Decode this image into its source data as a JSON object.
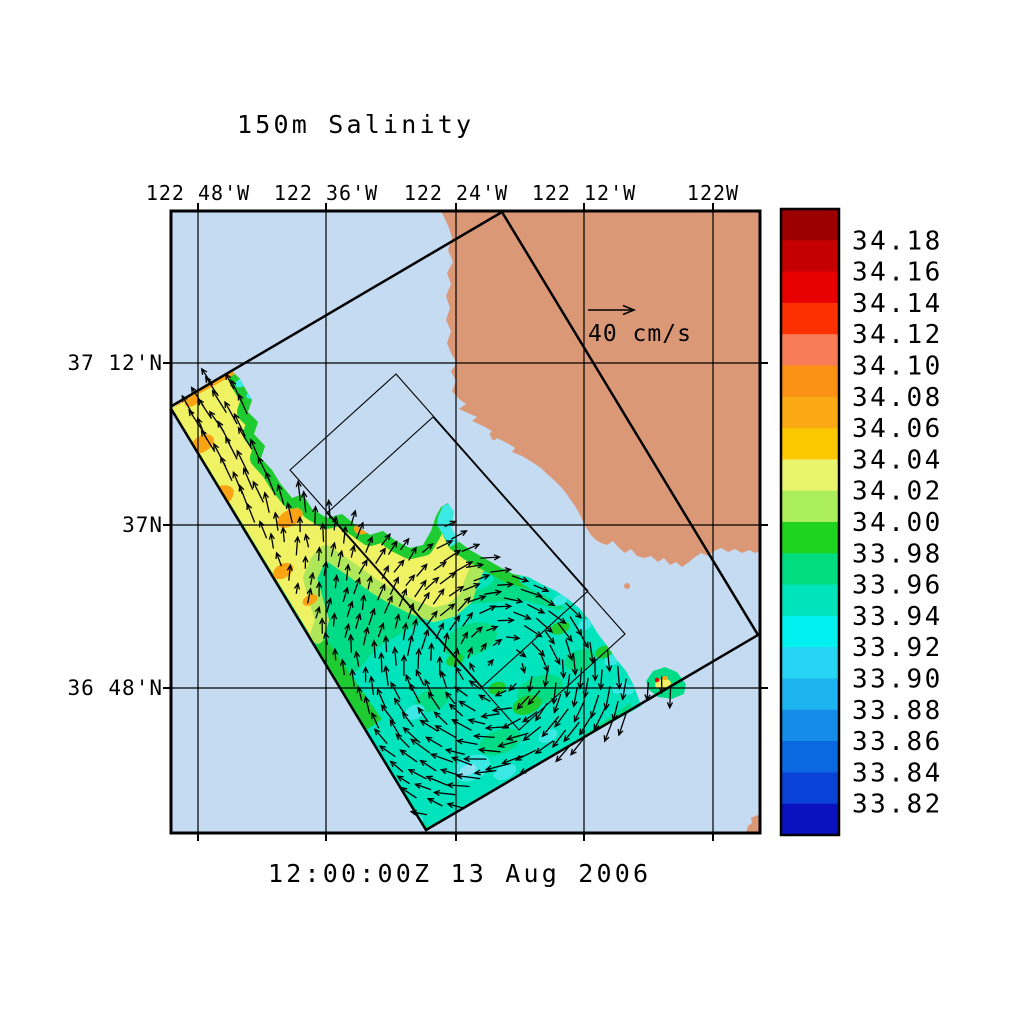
{
  "title": "150m Salinity",
  "timestamp": "12:00:00Z  13 Aug 2006",
  "scale_arrow": {
    "label": "40 cm/s"
  },
  "axes": {
    "lon_labels": [
      "122 48'W",
      "122 36'W",
      "122 24'W",
      "122 12'W",
      "122W"
    ],
    "lat_labels": [
      "37 12'N",
      "37N",
      "36 48'N"
    ]
  },
  "colorbar": {
    "tick_labels": [
      "34.18",
      "34.16",
      "34.14",
      "34.12",
      "34.10",
      "34.08",
      "34.06",
      "34.04",
      "34.02",
      "34.00",
      "33.98",
      "33.96",
      "33.94",
      "33.92",
      "33.90",
      "33.88",
      "33.86",
      "33.84",
      "33.82"
    ],
    "band_colors": [
      "#9c0000",
      "#c40000",
      "#e80000",
      "#fc3000",
      "#f87c58",
      "#fa9014",
      "#faa814",
      "#fbc800",
      "#e8f46c",
      "#aaee5c",
      "#1ed41e",
      "#00dc80",
      "#00e4bc",
      "#00f0f0",
      "#28d4f4",
      "#1eb4f0",
      "#148ce8",
      "#0a68e0",
      "#0a42d8",
      "#0a12c0"
    ]
  },
  "palette": {
    "ocean": "#c5dbf2",
    "land": "#db9876",
    "frame": "#000000",
    "arrow": "#000000",
    "field_yellow": "#eef263",
    "field_yellowgreen": "#aee85a",
    "field_green": "#1ecc32",
    "field_spring": "#00dc86",
    "field_turquoise": "#00e4be",
    "field_cyan": "#3ce8e4",
    "field_pale_cyan": "#8fe0f2",
    "field_orange": "#faa414",
    "field_red_spot": "#e80000"
  },
  "chart_data": {
    "type": "heatmap",
    "title": "150m Salinity",
    "valid_time": "12:00:00Z 13 Aug 2006",
    "region": "Monterey Bay, California coastal ocean (approx 122 54'W - 122W, 36 36'N - 37 22'N)",
    "x_axis": {
      "label": "Longitude",
      "tick_labels": [
        "122 48'W",
        "122 36'W",
        "122 24'W",
        "122 12'W",
        "122W"
      ]
    },
    "y_axis": {
      "label": "Latitude",
      "tick_labels": [
        "37 12'N",
        "37N",
        "36 48'N"
      ]
    },
    "color_scale": {
      "variable": "salinity at 150 m depth",
      "tick_values": [
        34.18,
        34.16,
        34.14,
        34.12,
        34.1,
        34.08,
        34.06,
        34.04,
        34.02,
        34.0,
        33.98,
        33.96,
        33.94,
        33.92,
        33.9,
        33.88,
        33.86,
        33.84,
        33.82
      ],
      "orientation": "vertical",
      "position": "right",
      "max_color": "dark red",
      "min_color": "dark blue"
    },
    "vectors": {
      "scale_label": "40 cm/s",
      "description": "150 m current vectors: strong poleward (northwestward) flow in the high-salinity band along the offshore edge; clockwise (anticyclonic) eddy centered near 36 52'N 122 22'W; southwestward flow along the southeast domain edge"
    },
    "field_features": [
      "Salinity field drawn only inside rotated model domain; land and shallow shelf masked",
      "High-salinity band 34.04-34.10 (yellow with orange patches) along the northwest edge",
      "Mid-field 33.98-34.02 (green fringe along the data boundary)",
      "Southeast half 33.90-33.98 (spring green / turquoise / cyan), lowest values near eddy and south edge",
      "Narrow data tongue extends into Monterey submarine canyon",
      "Small isolated high-salinity pocket off the Monterey Peninsula",
      "One thick and two thin rotated nested model-domain rectangles drawn in black",
      "Lat/lon graticule every 12 arc-minutes"
    ]
  }
}
